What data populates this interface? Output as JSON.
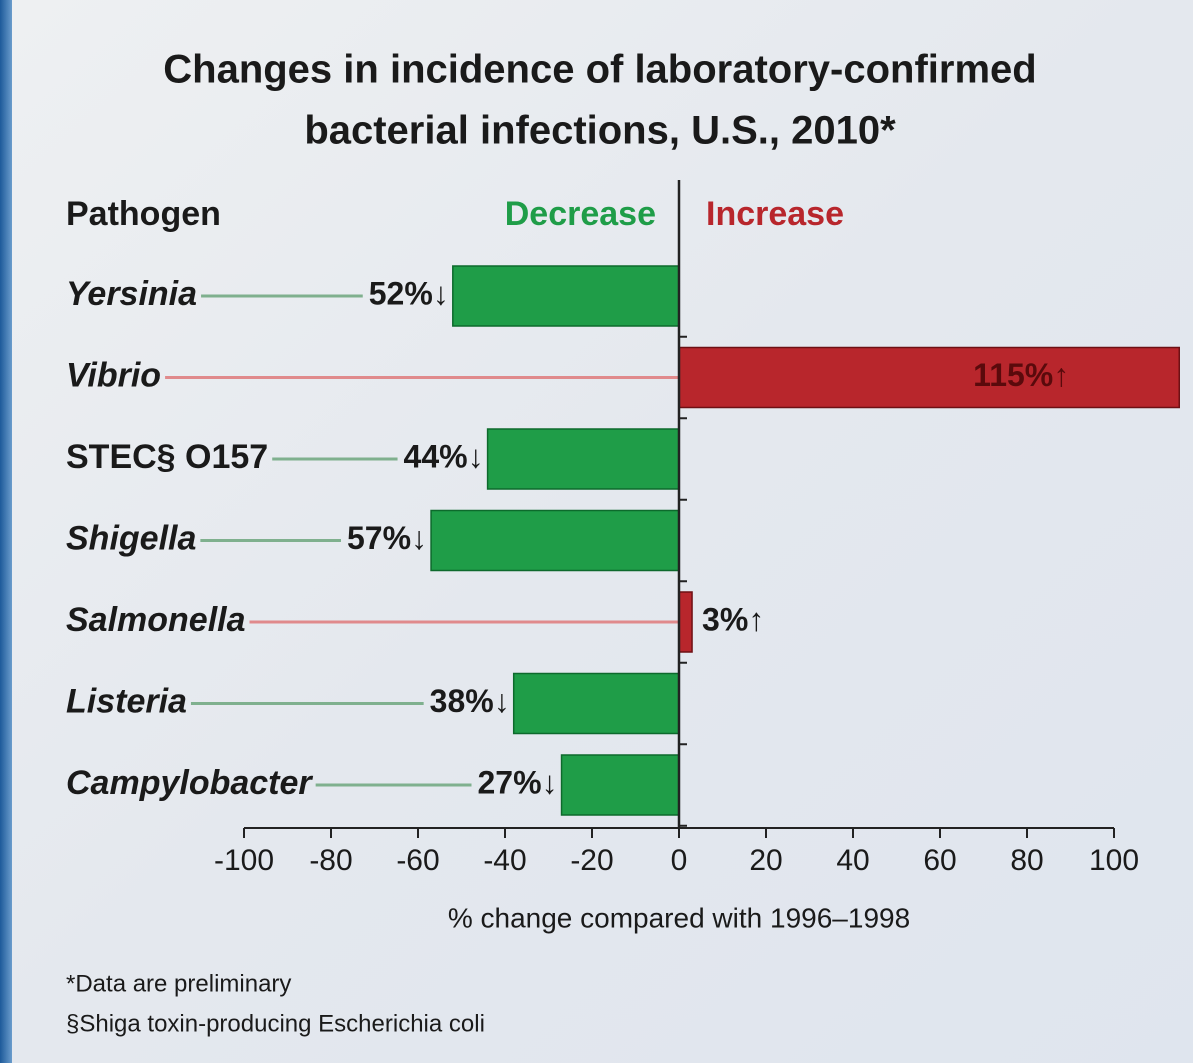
{
  "chart_data": {
    "type": "bar",
    "orientation": "horizontal",
    "title": [
      "Changes in incidence of laboratory-confirmed",
      "bacterial infections, U.S., 2010*"
    ],
    "category_header": "Pathogen",
    "decrease_label": "Decrease",
    "increase_label": "Increase",
    "categories": [
      "Yersinia",
      "Vibrio",
      "STEC§ O157",
      "Shigella",
      "Salmonella",
      "Listeria",
      "Campylobacter"
    ],
    "values": [
      -52,
      115,
      -44,
      -57,
      3,
      -38,
      -27
    ],
    "value_labels": [
      "52%↓",
      "115%↑",
      "44%↓",
      "57%↓",
      "3%↑",
      "38%↓",
      "27%↓"
    ],
    "decrease_color": "#1f9d48",
    "increase_color": "#b8262c",
    "xlabel": "% change compared with 1996–1998",
    "xlim": [
      -100,
      100
    ],
    "xticks": [
      -100,
      -80,
      -60,
      -40,
      -20,
      0,
      20,
      40,
      60,
      80,
      100
    ],
    "footnotes": [
      "*Data are preliminary",
      "§Shiga toxin-producing Escherichia coli"
    ]
  }
}
